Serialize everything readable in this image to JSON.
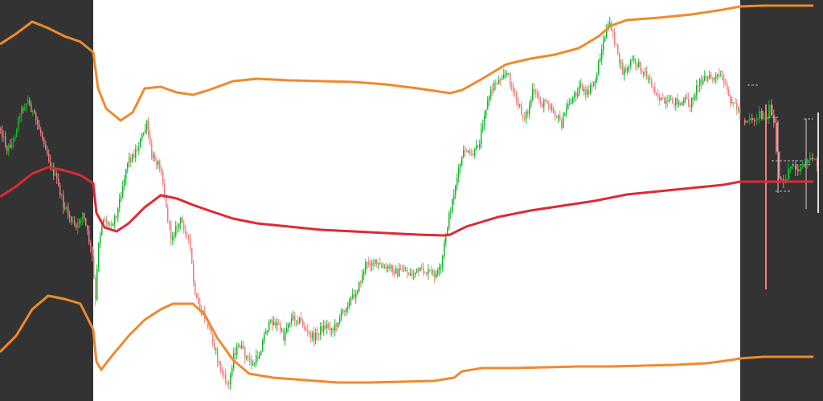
{
  "colors": {
    "panel_dark": "#333333",
    "panel_bg": "#ffffff",
    "up_candle": "#11b82a",
    "down_candle": "#f07c7c",
    "band_outer": "#ef8a2e",
    "band_middle": "#de2a36"
  },
  "chart_data": {
    "type": "candlestick",
    "title": "",
    "xlabel": "",
    "ylabel": "",
    "grid": false,
    "legend": "none",
    "ylim": [
      0,
      499
    ],
    "price_path": [
      [
        0,
        160
      ],
      [
        8,
        185
      ],
      [
        16,
        175
      ],
      [
        24,
        140
      ],
      [
        34,
        125
      ],
      [
        44,
        150
      ],
      [
        54,
        175
      ],
      [
        62,
        205
      ],
      [
        70,
        225
      ],
      [
        78,
        255
      ],
      [
        86,
        270
      ],
      [
        94,
        285
      ],
      [
        102,
        265
      ],
      [
        108,
        290
      ],
      [
        114,
        320
      ],
      [
        118,
        375
      ],
      [
        122,
        300
      ],
      [
        128,
        270
      ],
      [
        134,
        280
      ],
      [
        140,
        275
      ],
      [
        146,
        260
      ],
      [
        152,
        230
      ],
      [
        158,
        200
      ],
      [
        164,
        195
      ],
      [
        170,
        185
      ],
      [
        176,
        170
      ],
      [
        182,
        155
      ],
      [
        188,
        195
      ],
      [
        194,
        200
      ],
      [
        200,
        210
      ],
      [
        206,
        260
      ],
      [
        212,
        295
      ],
      [
        218,
        285
      ],
      [
        224,
        275
      ],
      [
        230,
        285
      ],
      [
        236,
        310
      ],
      [
        242,
        370
      ],
      [
        248,
        385
      ],
      [
        254,
        395
      ],
      [
        260,
        410
      ],
      [
        266,
        430
      ],
      [
        272,
        455
      ],
      [
        278,
        470
      ],
      [
        284,
        480
      ],
      [
        290,
        440
      ],
      [
        298,
        430
      ],
      [
        306,
        445
      ],
      [
        314,
        455
      ],
      [
        322,
        440
      ],
      [
        330,
        410
      ],
      [
        338,
        400
      ],
      [
        346,
        405
      ],
      [
        352,
        420
      ],
      [
        358,
        400
      ],
      [
        366,
        395
      ],
      [
        374,
        400
      ],
      [
        382,
        415
      ],
      [
        390,
        420
      ],
      [
        398,
        410
      ],
      [
        406,
        405
      ],
      [
        414,
        410
      ],
      [
        422,
        395
      ],
      [
        430,
        380
      ],
      [
        438,
        370
      ],
      [
        446,
        355
      ],
      [
        454,
        330
      ],
      [
        462,
        325
      ],
      [
        470,
        330
      ],
      [
        478,
        335
      ],
      [
        486,
        333
      ],
      [
        494,
        340
      ],
      [
        502,
        335
      ],
      [
        510,
        342
      ],
      [
        518,
        338
      ],
      [
        526,
        337
      ],
      [
        534,
        340
      ],
      [
        542,
        342
      ],
      [
        548,
        335
      ],
      [
        554,
        290
      ],
      [
        560,
        260
      ],
      [
        566,
        230
      ],
      [
        572,
        205
      ],
      [
        578,
        185
      ],
      [
        584,
        195
      ],
      [
        590,
        190
      ],
      [
        596,
        175
      ],
      [
        602,
        140
      ],
      [
        608,
        120
      ],
      [
        614,
        105
      ],
      [
        620,
        100
      ],
      [
        626,
        90
      ],
      [
        632,
        95
      ],
      [
        638,
        115
      ],
      [
        644,
        130
      ],
      [
        650,
        145
      ],
      [
        656,
        140
      ],
      [
        662,
        115
      ],
      [
        668,
        120
      ],
      [
        674,
        130
      ],
      [
        680,
        125
      ],
      [
        686,
        135
      ],
      [
        692,
        145
      ],
      [
        698,
        155
      ],
      [
        704,
        135
      ],
      [
        710,
        125
      ],
      [
        716,
        115
      ],
      [
        722,
        105
      ],
      [
        728,
        120
      ],
      [
        734,
        110
      ],
      [
        740,
        100
      ],
      [
        746,
        70
      ],
      [
        752,
        45
      ],
      [
        758,
        30
      ],
      [
        762,
        40
      ],
      [
        768,
        70
      ],
      [
        774,
        90
      ],
      [
        780,
        85
      ],
      [
        786,
        75
      ],
      [
        792,
        80
      ],
      [
        798,
        85
      ],
      [
        804,
        95
      ],
      [
        810,
        105
      ],
      [
        816,
        115
      ],
      [
        822,
        125
      ],
      [
        828,
        130
      ],
      [
        834,
        128
      ],
      [
        840,
        125
      ],
      [
        846,
        130
      ],
      [
        852,
        125
      ],
      [
        858,
        130
      ],
      [
        864,
        115
      ],
      [
        870,
        100
      ],
      [
        876,
        97
      ],
      [
        882,
        97
      ],
      [
        888,
        98
      ],
      [
        894,
        95
      ],
      [
        900,
        105
      ],
      [
        906,
        120
      ],
      [
        912,
        128
      ],
      [
        920,
        140
      ]
    ],
    "right_panel_path": [
      [
        926,
        150
      ],
      [
        932,
        145
      ],
      [
        938,
        150
      ],
      [
        944,
        140
      ],
      [
        950,
        150
      ],
      [
        956,
        135
      ],
      [
        962,
        155
      ],
      [
        968,
        225
      ],
      [
        974,
        230
      ],
      [
        980,
        210
      ],
      [
        986,
        205
      ],
      [
        992,
        210
      ],
      [
        998,
        205
      ],
      [
        1004,
        200
      ],
      [
        1010,
        195
      ],
      [
        1016,
        210
      ]
    ],
    "upper_band": [
      [
        0,
        55
      ],
      [
        20,
        42
      ],
      [
        40,
        27
      ],
      [
        60,
        35
      ],
      [
        80,
        45
      ],
      [
        100,
        52
      ],
      [
        116,
        65
      ],
      [
        122,
        110
      ],
      [
        132,
        135
      ],
      [
        150,
        150
      ],
      [
        165,
        140
      ],
      [
        180,
        110
      ],
      [
        200,
        108
      ],
      [
        220,
        115
      ],
      [
        240,
        118
      ],
      [
        260,
        112
      ],
      [
        290,
        101
      ],
      [
        320,
        98
      ],
      [
        360,
        100
      ],
      [
        400,
        101
      ],
      [
        440,
        102
      ],
      [
        480,
        105
      ],
      [
        520,
        110
      ],
      [
        560,
        116
      ],
      [
        575,
        112
      ],
      [
        600,
        98
      ],
      [
        630,
        80
      ],
      [
        660,
        73
      ],
      [
        690,
        68
      ],
      [
        720,
        60
      ],
      [
        745,
        45
      ],
      [
        760,
        32
      ],
      [
        780,
        25
      ],
      [
        820,
        22
      ],
      [
        860,
        18
      ],
      [
        900,
        12
      ],
      [
        921,
        8
      ],
      [
        950,
        7
      ],
      [
        1012,
        7
      ]
    ],
    "middle_band": [
      [
        0,
        245
      ],
      [
        20,
        232
      ],
      [
        40,
        216
      ],
      [
        60,
        208
      ],
      [
        80,
        212
      ],
      [
        100,
        218
      ],
      [
        116,
        228
      ],
      [
        120,
        265
      ],
      [
        130,
        283
      ],
      [
        145,
        288
      ],
      [
        160,
        278
      ],
      [
        180,
        258
      ],
      [
        200,
        243
      ],
      [
        220,
        247
      ],
      [
        240,
        255
      ],
      [
        260,
        262
      ],
      [
        290,
        272
      ],
      [
        320,
        278
      ],
      [
        360,
        282
      ],
      [
        400,
        286
      ],
      [
        440,
        288
      ],
      [
        480,
        290
      ],
      [
        520,
        292
      ],
      [
        552,
        293
      ],
      [
        560,
        292
      ],
      [
        580,
        282
      ],
      [
        620,
        270
      ],
      [
        660,
        262
      ],
      [
        700,
        256
      ],
      [
        740,
        250
      ],
      [
        780,
        242
      ],
      [
        820,
        238
      ],
      [
        860,
        234
      ],
      [
        900,
        230
      ],
      [
        921,
        226
      ],
      [
        960,
        226
      ],
      [
        1012,
        226
      ]
    ],
    "lower_band": [
      [
        0,
        438
      ],
      [
        20,
        418
      ],
      [
        40,
        385
      ],
      [
        60,
        368
      ],
      [
        80,
        372
      ],
      [
        100,
        378
      ],
      [
        116,
        410
      ],
      [
        120,
        450
      ],
      [
        126,
        460
      ],
      [
        140,
        442
      ],
      [
        160,
        418
      ],
      [
        180,
        398
      ],
      [
        200,
        385
      ],
      [
        215,
        378
      ],
      [
        240,
        378
      ],
      [
        255,
        392
      ],
      [
        270,
        420
      ],
      [
        290,
        448
      ],
      [
        310,
        465
      ],
      [
        340,
        470
      ],
      [
        380,
        473
      ],
      [
        420,
        476
      ],
      [
        460,
        476
      ],
      [
        500,
        475
      ],
      [
        540,
        474
      ],
      [
        565,
        470
      ],
      [
        575,
        462
      ],
      [
        600,
        458
      ],
      [
        640,
        458
      ],
      [
        680,
        457
      ],
      [
        720,
        456
      ],
      [
        760,
        456
      ],
      [
        800,
        455
      ],
      [
        840,
        454
      ],
      [
        880,
        452
      ],
      [
        910,
        448
      ],
      [
        921,
        446
      ],
      [
        950,
        444
      ],
      [
        1012,
        444
      ]
    ]
  }
}
